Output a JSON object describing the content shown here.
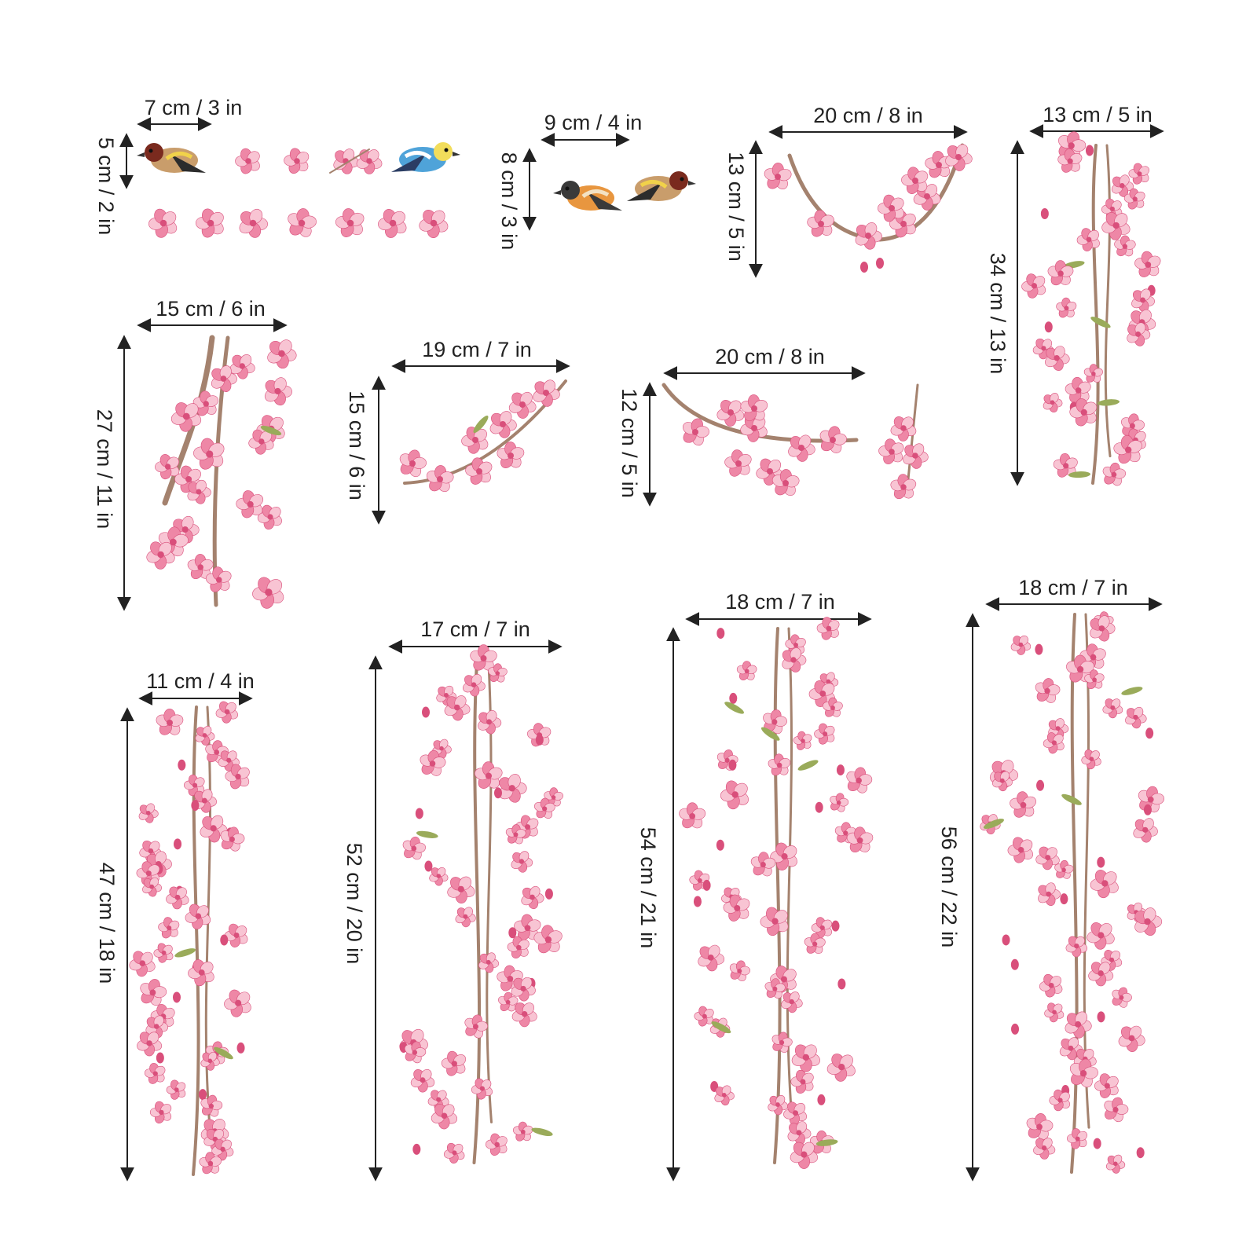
{
  "bird_colors": {
    "goldfinch": [
      "#c99d6b",
      "#7a2a1e",
      "#f1d24a",
      "#2c2c2c"
    ],
    "bluetit": [
      "#4fa3d9",
      "#f2dd5b",
      "#ffffff",
      "#2b3d63"
    ],
    "hoopoe": [
      "#e8963f",
      "#3a3a3a",
      "#f3e2c4"
    ]
  },
  "colors": {
    "petal": "#ee87a6",
    "petal_light": "#f8c4d3",
    "petal_dark": "#d94f7b",
    "branch": "#a4826e",
    "leaf": "#9aab5a",
    "dimension_line": "#222222"
  },
  "stickers": [
    {
      "id": "birds-and-blossoms",
      "name": "Small birds and single blossoms",
      "width_label": "7 cm / 3 in",
      "height_label": "5 cm / 2 in"
    },
    {
      "id": "hoopoe-and-goldfinch",
      "name": "Hoopoe and goldfinch",
      "width_label": "9 cm / 4 in",
      "height_label": "8 cm / 3 in"
    },
    {
      "id": "arched-branch",
      "name": "Arched blossom branch",
      "width_label": "20 cm / 8 in",
      "height_label": "13 cm / 5 in"
    },
    {
      "id": "hanging-branch-top-right",
      "name": "Hanging blossom branch",
      "width_label": "13 cm / 5 in",
      "height_label": "34 cm / 13 in"
    },
    {
      "id": "leaning-branch",
      "name": "Leaning blossom branch",
      "width_label": "15 cm / 6 in",
      "height_label": "27 cm / 11 in"
    },
    {
      "id": "curved-sprig",
      "name": "Curved blossom sprig",
      "width_label": "19 cm / 7 in",
      "height_label": "15 cm / 6 in"
    },
    {
      "id": "horizontal-branch",
      "name": "Horizontal blossom branch",
      "width_label": "20 cm / 8 in",
      "height_label": "12 cm / 5 in"
    },
    {
      "id": "vine-1",
      "name": "Cascading blossom vine",
      "width_label": "11 cm / 4 in",
      "height_label": "47 cm / 18 in"
    },
    {
      "id": "vine-2",
      "name": "Cascading blossom vine",
      "width_label": "17 cm / 7 in",
      "height_label": "52 cm / 20 in"
    },
    {
      "id": "vine-3",
      "name": "Cascading blossom vine",
      "width_label": "18 cm / 7 in",
      "height_label": "54 cm / 21 in"
    },
    {
      "id": "vine-4",
      "name": "Cascading blossom vine",
      "width_label": "18 cm / 7 in",
      "height_label": "56 cm / 22 in"
    }
  ]
}
